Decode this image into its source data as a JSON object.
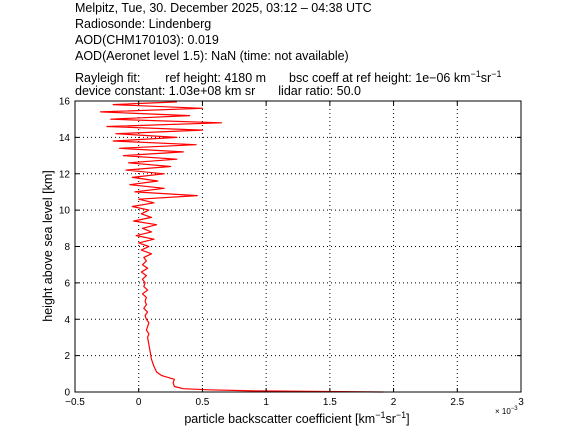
{
  "header": {
    "line1": "Melpitz, Tue, 30. December 2025, 03:12 – 04:38 UTC",
    "line2": "Radiosonde: Lindenberg",
    "line3": "AOD(CHM170103): 0.019",
    "line4": "AOD(Aeronet level 1.5): NaN   (time: not available)",
    "rayleigh_label": "Rayleigh fit:",
    "ref_height": "ref height: 4180 m",
    "bsc_prefix": "bsc coeff at ref height: 1e−06 km",
    "unit_exp1": "−1",
    "unit_sr": "sr",
    "unit_exp2": "−1",
    "device_constant": "device constant: 1.03e+08 km sr",
    "lidar_ratio": "lidar ratio: 50.0"
  },
  "colors": {
    "series": "#ff0000",
    "grid": "#000000"
  },
  "chart_data": {
    "type": "line",
    "xlabel_main": "particle backscatter coefficient [km",
    "xlabel_exp1": "−1",
    "xlabel_sr": "sr",
    "xlabel_exp2": "−1",
    "xlabel_close": "]",
    "ylabel": "height above sea level [km]",
    "x_multiplier_base": "× 10",
    "x_multiplier_exp": "−3",
    "xlim": [
      -0.5,
      3
    ],
    "ylim": [
      0,
      16
    ],
    "xticks": [
      "−0.5",
      "0",
      "0.5",
      "1",
      "1.5",
      "2",
      "2.5",
      "3"
    ],
    "yticks": [
      "0",
      "2",
      "4",
      "6",
      "8",
      "10",
      "12",
      "14",
      "16"
    ],
    "grid": true,
    "series": [
      {
        "x": [
          1.92,
          0.9,
          0.55,
          0.35,
          0.28,
          0.27,
          0.28,
          0.18,
          0.14,
          0.12,
          0.1,
          0.09,
          0.08,
          0.07,
          0.08,
          0.06,
          0.07,
          0.08,
          0.06,
          0.05,
          0.07,
          0.04,
          0.06,
          0.05,
          0.06,
          0.03,
          0.07,
          0.04,
          0.05,
          0.03,
          0.06,
          0.02,
          0.07,
          0.03,
          0.06,
          0.04,
          0.1,
          0.02,
          0.08,
          0.0,
          0.12,
          -0.02,
          0.1,
          0.03,
          0.14,
          -0.04,
          0.1,
          0.02,
          0.08,
          -0.05,
          0.12,
          0.0,
          0.46,
          -0.03,
          0.2,
          -0.07,
          0.15,
          -0.05,
          0.2,
          -0.1,
          0.25,
          -0.08,
          0.3,
          -0.12,
          0.35,
          -0.15,
          0.45,
          -0.2,
          0.3,
          -0.18,
          0.5,
          -0.25,
          0.65,
          -0.22,
          0.4,
          -0.3,
          0.5,
          -0.2,
          0.3
        ],
        "y": [
          0.0,
          0.06,
          0.12,
          0.18,
          0.3,
          0.5,
          0.7,
          0.9,
          1.1,
          1.4,
          1.8,
          2.2,
          2.6,
          3.0,
          3.2,
          3.4,
          3.6,
          3.8,
          4.0,
          4.2,
          4.4,
          4.6,
          4.8,
          5.0,
          5.2,
          5.4,
          5.6,
          5.8,
          6.0,
          6.2,
          6.4,
          6.6,
          6.8,
          7.0,
          7.2,
          7.4,
          7.6,
          7.8,
          8.0,
          8.2,
          8.4,
          8.6,
          8.8,
          9.0,
          9.2,
          9.4,
          9.6,
          9.8,
          10.0,
          10.2,
          10.4,
          10.6,
          10.8,
          11.0,
          11.2,
          11.4,
          11.6,
          11.8,
          12.0,
          12.2,
          12.4,
          12.6,
          12.8,
          13.0,
          13.2,
          13.4,
          13.6,
          13.8,
          14.0,
          14.2,
          14.4,
          14.6,
          14.8,
          15.0,
          15.2,
          15.4,
          15.6,
          15.8,
          15.95
        ]
      }
    ]
  }
}
